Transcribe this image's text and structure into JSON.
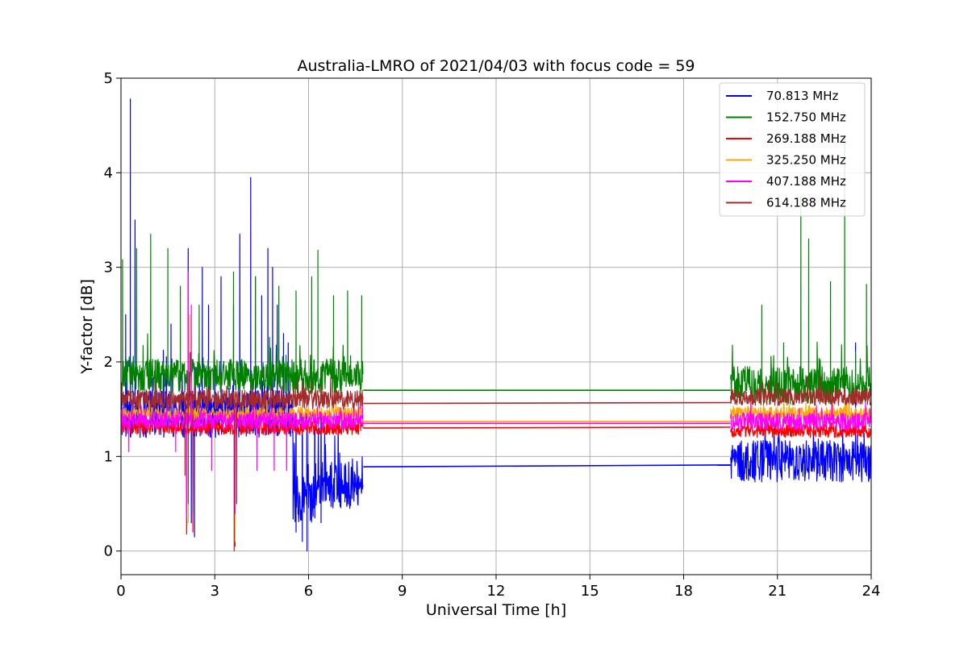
{
  "chart_data": {
    "type": "line",
    "title": "Australia-LMRO of 2021/04/03 with focus code = 59",
    "xlabel": "Universal Time [h]",
    "ylabel": "Y-factor [dB]",
    "xlim": [
      0,
      24
    ],
    "ylim": [
      -0.25,
      5
    ],
    "xticks": [
      "0",
      "3",
      "6",
      "9",
      "12",
      "15",
      "18",
      "21",
      "24"
    ],
    "yticks": [
      "0",
      "1",
      "2",
      "3",
      "4",
      "5"
    ],
    "grid": true,
    "legend_position": "top-right",
    "segments": {
      "early": [
        0,
        7.75
      ],
      "late": [
        19.5,
        24
      ]
    },
    "series": [
      {
        "name": " 70.813 MHz",
        "color": "#0000ff",
        "early_base": 1.45,
        "early_noise": 0.25,
        "gap": [
          0.89,
          0.91
        ],
        "late_base": 0.95,
        "late_noise": 0.22,
        "spikes": [
          [
            0.15,
            2.5
          ],
          [
            0.3,
            4.78
          ],
          [
            0.45,
            3.5
          ],
          [
            1.6,
            2.4
          ],
          [
            2.15,
            3.2
          ],
          [
            2.6,
            3.0
          ],
          [
            2.8,
            2.6
          ],
          [
            3.2,
            2.9
          ],
          [
            3.6,
            2.6
          ],
          [
            3.8,
            3.35
          ],
          [
            4.15,
            3.95
          ],
          [
            4.3,
            2.9
          ],
          [
            4.5,
            2.7
          ],
          [
            4.7,
            3.2
          ],
          [
            4.85,
            3.0
          ],
          [
            5.0,
            2.6
          ],
          [
            5.2,
            2.3
          ],
          [
            5.35,
            2.2
          ],
          [
            23.5,
            2.2
          ]
        ],
        "dips": [
          [
            2.1,
            0.4
          ],
          [
            2.25,
            0.3
          ],
          [
            2.35,
            0.15
          ],
          [
            5.6,
            0.2
          ],
          [
            5.8,
            0.1
          ],
          [
            5.95,
            0.0
          ],
          [
            6.2,
            0.35
          ],
          [
            6.4,
            0.3
          ]
        ],
        "late_segment_dips": [
          [
            5.5,
            0.75
          ],
          [
            7.75,
            0.7
          ]
        ]
      },
      {
        "name": "152.750 MHz",
        "color": "#008000",
        "early_base": 1.85,
        "early_noise": 0.18,
        "gap": [
          1.7,
          1.7
        ],
        "late_base": 1.75,
        "late_noise": 0.2,
        "spikes": [
          [
            0.05,
            3.08
          ],
          [
            0.5,
            3.2
          ],
          [
            0.95,
            3.35
          ],
          [
            1.5,
            3.2
          ],
          [
            1.9,
            2.8
          ],
          [
            2.5,
            2.6
          ],
          [
            3.6,
            2.95
          ],
          [
            4.3,
            2.9
          ],
          [
            5.05,
            2.8
          ],
          [
            5.6,
            2.75
          ],
          [
            6.1,
            2.9
          ],
          [
            6.3,
            3.18
          ],
          [
            6.8,
            2.7
          ],
          [
            7.25,
            2.75
          ],
          [
            7.7,
            2.7
          ],
          [
            20.5,
            2.6
          ],
          [
            21.2,
            2.2
          ],
          [
            21.75,
            3.75
          ],
          [
            22.0,
            3.3
          ],
          [
            22.7,
            2.85
          ],
          [
            23.15,
            4.4
          ],
          [
            23.5,
            2.1
          ],
          [
            23.85,
            2.82
          ]
        ],
        "dips": [],
        "late_segment_dips": []
      },
      {
        "name": "269.188 MHz",
        "color": "#ff0000",
        "early_base": 1.3,
        "early_noise": 0.07,
        "gap": [
          1.3,
          1.31
        ],
        "late_base": 1.27,
        "late_noise": 0.07,
        "spikes": [
          [
            2.15,
            2.9
          ]
        ],
        "dips": [
          [
            2.1,
            0.18
          ],
          [
            2.3,
            0.2
          ],
          [
            3.65,
            0.05
          ]
        ],
        "late_segment_dips": []
      },
      {
        "name": "325.250 MHz",
        "color": "#ffa500",
        "early_base": 1.45,
        "early_noise": 0.07,
        "gap": [
          1.37,
          1.37
        ],
        "late_base": 1.45,
        "late_noise": 0.07,
        "spikes": [
          [
            2.2,
            2.5
          ]
        ],
        "dips": [
          [
            2.15,
            0.3
          ],
          [
            3.65,
            0.1
          ]
        ],
        "late_segment_dips": []
      },
      {
        "name": "407.188 MHz",
        "color": "#ff00ff",
        "early_base": 1.38,
        "early_noise": 0.09,
        "gap": [
          1.35,
          1.35
        ],
        "late_base": 1.37,
        "late_noise": 0.09,
        "spikes": [
          [
            2.15,
            2.95
          ],
          [
            2.25,
            2.6
          ]
        ],
        "dips": [
          [
            0.25,
            1.05
          ],
          [
            1.75,
            1.05
          ],
          [
            2.1,
            0.35
          ],
          [
            2.3,
            0.6
          ],
          [
            2.9,
            0.85
          ],
          [
            3.65,
            0.4
          ],
          [
            4.35,
            0.85
          ],
          [
            4.9,
            0.85
          ],
          [
            5.3,
            0.85
          ]
        ],
        "late_segment_dips": []
      },
      {
        "name": "614.188 MHz",
        "color": "#a52a2a",
        "early_base": 1.6,
        "early_noise": 0.1,
        "gap": [
          1.56,
          1.57
        ],
        "late_base": 1.63,
        "late_noise": 0.09,
        "spikes": [
          [
            2.2,
            2.1
          ]
        ],
        "dips": [
          [
            2.05,
            0.8
          ],
          [
            2.15,
            0.5
          ],
          [
            2.3,
            0.4
          ],
          [
            3.62,
            0.0
          ],
          [
            3.7,
            0.5
          ]
        ],
        "late_segment_dips": []
      }
    ]
  }
}
